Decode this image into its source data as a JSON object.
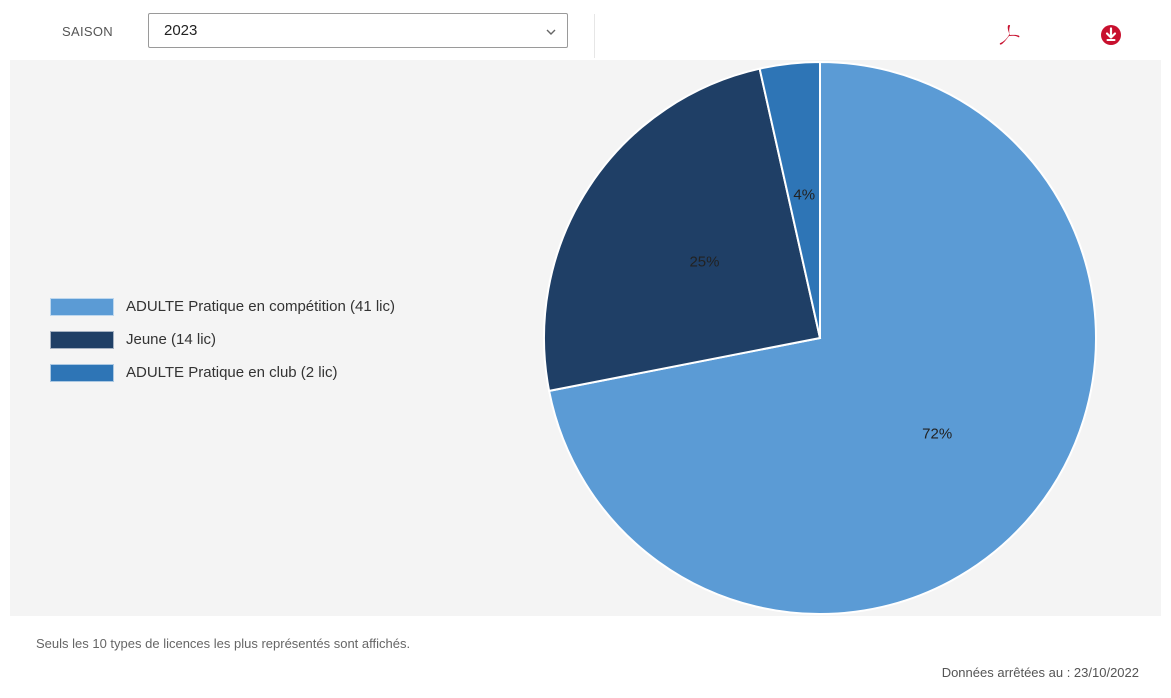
{
  "toolbar": {
    "season_label": "SAISON",
    "season_value": "2023"
  },
  "icons": {
    "pdf": "pdf-icon",
    "download": "download-icon",
    "chevron": "chevron-down-icon"
  },
  "colors": {
    "series": [
      "#5b9bd5",
      "#1f3f66",
      "#2e75b6"
    ],
    "icon_red": "#c8102e"
  },
  "chart_data": {
    "type": "pie",
    "slices": [
      {
        "label": "ADULTE Pratique en compétition (41 lic)",
        "value": 41,
        "percent_label": "72%"
      },
      {
        "label": "Jeune (14 lic)",
        "value": 14,
        "percent_label": "25%"
      },
      {
        "label": "ADULTE Pratique en club (2 lic)",
        "value": 2,
        "percent_label": "4%"
      }
    ],
    "legend_position": "left"
  },
  "footer": {
    "note": "Seuls les 10 types de licences les plus représentés sont affichés.",
    "date": "Données arrêtées au : 23/10/2022"
  }
}
